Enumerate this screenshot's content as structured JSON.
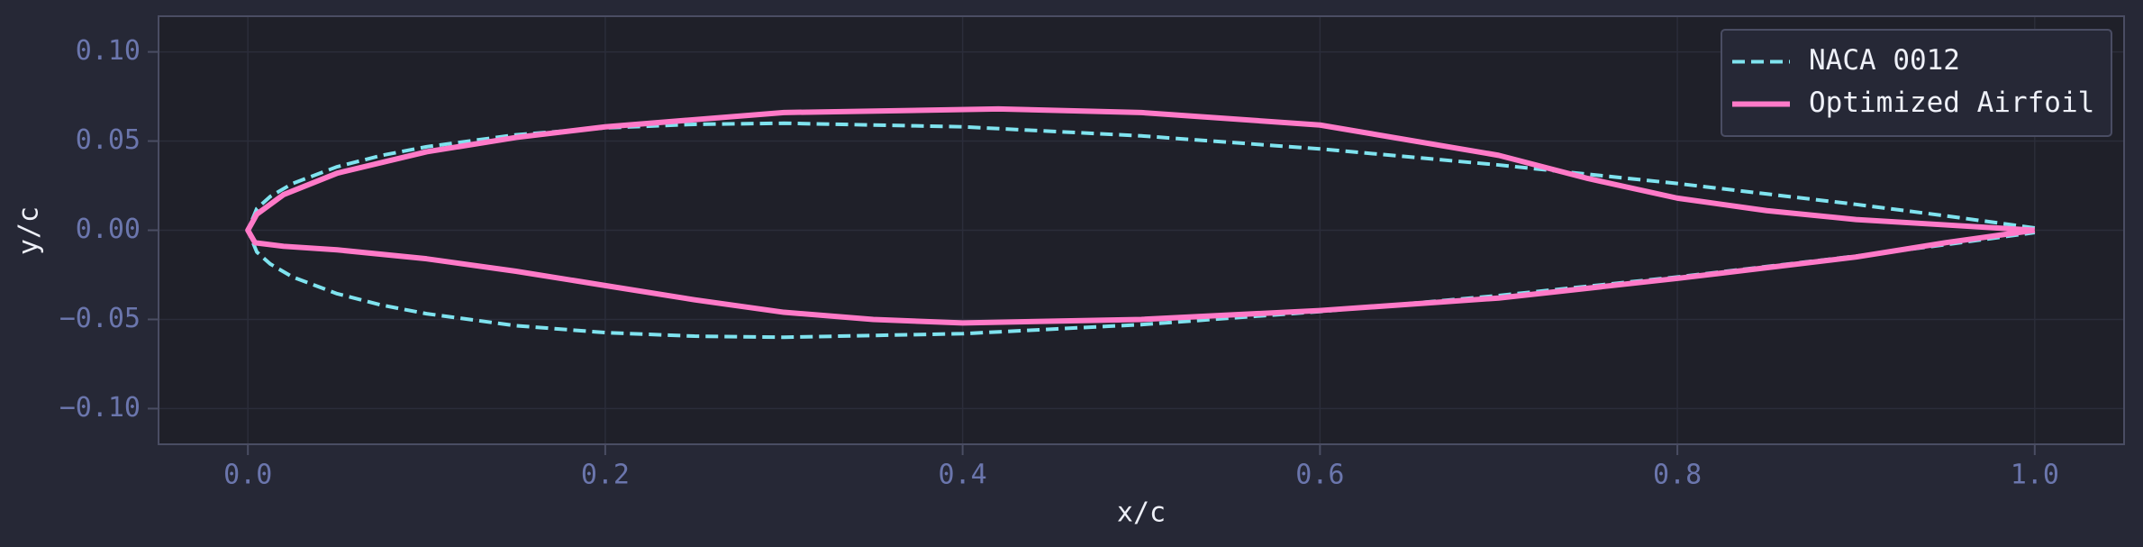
{
  "chart_data": {
    "type": "line",
    "xlabel": "x/c",
    "ylabel": "y/c",
    "xlim": [
      -0.05,
      1.05
    ],
    "ylim": [
      -0.12,
      0.12
    ],
    "xticks": [
      {
        "value": 0,
        "label": "0.0"
      },
      {
        "value": 0.2,
        "label": "0.2"
      },
      {
        "value": 0.4,
        "label": "0.4"
      },
      {
        "value": 0.6,
        "label": "0.6"
      },
      {
        "value": 0.8,
        "label": "0.8"
      },
      {
        "value": 1,
        "label": "1.0"
      }
    ],
    "yticks": [
      {
        "value": -0.1,
        "label": "−0.10"
      },
      {
        "value": -0.05,
        "label": "−0.05"
      },
      {
        "value": 0,
        "label": "0.00"
      },
      {
        "value": 0.05,
        "label": "0.05"
      },
      {
        "value": 0.1,
        "label": "0.10"
      }
    ],
    "grid": true,
    "legend": "upper right",
    "series": [
      {
        "name": "NACA 0012",
        "color": "#7fe3ef",
        "linestyle": "dashed",
        "x": [
          1,
          0.95,
          0.9,
          0.8,
          0.7,
          0.6,
          0.5,
          0.4,
          0.3,
          0.25,
          0.2,
          0.15,
          0.1,
          0.075,
          0.05,
          0.025,
          0.0125,
          0.005,
          0,
          0.005,
          0.0125,
          0.025,
          0.05,
          0.075,
          0.1,
          0.15,
          0.2,
          0.25,
          0.3,
          0.4,
          0.5,
          0.6,
          0.7,
          0.8,
          0.9,
          0.95,
          1
        ],
        "values": [
          0.0013,
          0.0081,
          0.0145,
          0.0262,
          0.0366,
          0.0456,
          0.0529,
          0.058,
          0.06,
          0.0594,
          0.0574,
          0.0535,
          0.0468,
          0.042,
          0.0356,
          0.0262,
          0.0189,
          0.0122,
          0,
          -0.0122,
          -0.0189,
          -0.0262,
          -0.0356,
          -0.042,
          -0.0468,
          -0.0535,
          -0.0574,
          -0.0594,
          -0.06,
          -0.058,
          -0.0529,
          -0.0456,
          -0.0366,
          -0.0262,
          -0.0145,
          -0.0081,
          -0.0013
        ]
      },
      {
        "name": "Optimized Airfoil",
        "color": "#ff7ac8",
        "linestyle": "solid",
        "x": [
          1,
          0.95,
          0.9,
          0.85,
          0.8,
          0.75,
          0.7,
          0.6,
          0.5,
          0.42,
          0.3,
          0.2,
          0.15,
          0.1,
          0.05,
          0.02,
          0.005,
          0,
          0.004,
          0.02,
          0.05,
          0.1,
          0.15,
          0.2,
          0.25,
          0.3,
          0.35,
          0.4,
          0.5,
          0.6,
          0.7,
          0.8,
          0.9,
          0.95,
          1
        ],
        "values": [
          0,
          0.003,
          0.006,
          0.011,
          0.018,
          0.029,
          0.042,
          0.059,
          0.066,
          0.068,
          0.066,
          0.058,
          0.052,
          0.044,
          0.032,
          0.02,
          0.009,
          0,
          -0.007,
          -0.009,
          -0.011,
          -0.016,
          -0.023,
          -0.031,
          -0.039,
          -0.046,
          -0.05,
          -0.052,
          -0.05,
          -0.045,
          -0.038,
          -0.027,
          -0.015,
          -0.007,
          0
        ]
      }
    ]
  }
}
